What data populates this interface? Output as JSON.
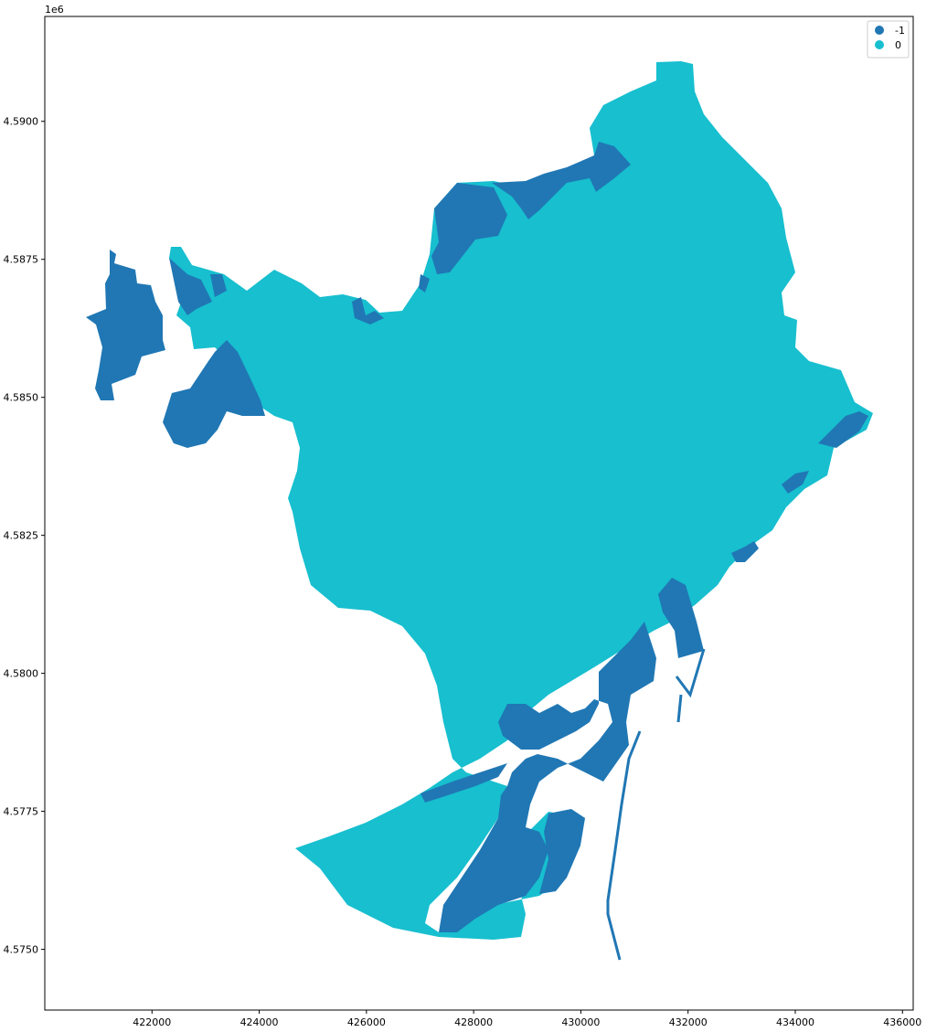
{
  "chart_data": {
    "type": "choropleth",
    "title": "",
    "xlabel": "",
    "ylabel": "",
    "x_ticks": [
      422000,
      424000,
      426000,
      428000,
      430000,
      432000,
      434000,
      436000
    ],
    "x_tick_labels": [
      "422000",
      "424000",
      "426000",
      "428000",
      "430000",
      "432000",
      "434000",
      "436000"
    ],
    "y_ticks": [
      4.575,
      4.5775,
      4.58,
      4.5825,
      4.585,
      4.5875,
      4.59
    ],
    "y_tick_labels": [
      "4.5750",
      "4.5775",
      "4.5800",
      "4.5825",
      "4.5850",
      "4.5875",
      "4.5900"
    ],
    "y_offset_label": "1e6",
    "xlim": [
      420000,
      436200
    ],
    "ylim": [
      4.5739,
      4.5919
    ],
    "grid": false,
    "legend_position": "top-right",
    "categories": [
      {
        "label": "-1",
        "color": "#2077b4"
      },
      {
        "label": "0",
        "color": "#17bfcf"
      }
    ]
  }
}
